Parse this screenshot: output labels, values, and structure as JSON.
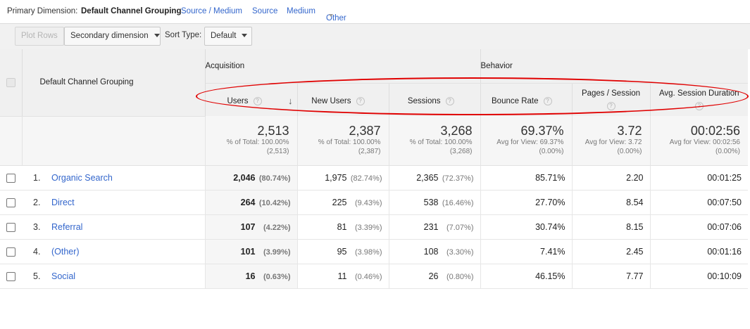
{
  "dimension_bar": {
    "label": "Primary Dimension:",
    "active": "Default Channel Grouping",
    "links": [
      "Source / Medium",
      "Source",
      "Medium",
      "Other"
    ]
  },
  "toolbar": {
    "plot_rows": "Plot Rows",
    "secondary_dimension": "Secondary dimension",
    "sort_type_label": "Sort Type:",
    "sort_type_value": "Default"
  },
  "table": {
    "dimension_header": "Default Channel Grouping",
    "groups": {
      "acquisition": "Acquisition",
      "behavior": "Behavior"
    },
    "metrics": {
      "users": "Users",
      "new_users": "New Users",
      "sessions": "Sessions",
      "bounce_rate": "Bounce Rate",
      "pages_session": "Pages / Session",
      "avg_session_duration": "Avg. Session Duration"
    },
    "help_glyph": "?",
    "sort_glyph": "↓",
    "totals": {
      "users": {
        "value": "2,513",
        "line1": "% of Total: 100.00%",
        "line2": "(2,513)"
      },
      "new_users": {
        "value": "2,387",
        "line1": "% of Total: 100.00%",
        "line2": "(2,387)"
      },
      "sessions": {
        "value": "3,268",
        "line1": "% of Total: 100.00%",
        "line2": "(3,268)"
      },
      "bounce_rate": {
        "value": "69.37%",
        "line1": "Avg for View: 69.37%",
        "line2": "(0.00%)"
      },
      "pages_session": {
        "value": "3.72",
        "line1": "Avg for View: 3.72",
        "line2": "(0.00%)"
      },
      "avg_session_duration": {
        "value": "00:02:56",
        "line1": "Avg for View: 00:02:56",
        "line2": "(0.00%)"
      }
    },
    "rows": [
      {
        "index": "1.",
        "channel": "Organic Search",
        "users": "2,046",
        "users_pct": "(80.74%)",
        "new_users": "1,975",
        "new_users_pct": "(82.74%)",
        "sessions": "2,365",
        "sessions_pct": "(72.37%)",
        "bounce_rate": "85.71%",
        "pages_session": "2.20",
        "avg_session_duration": "00:01:25"
      },
      {
        "index": "2.",
        "channel": "Direct",
        "users": "264",
        "users_pct": "(10.42%)",
        "new_users": "225",
        "new_users_pct": "(9.43%)",
        "sessions": "538",
        "sessions_pct": "(16.46%)",
        "bounce_rate": "27.70%",
        "pages_session": "8.54",
        "avg_session_duration": "00:07:50"
      },
      {
        "index": "3.",
        "channel": "Referral",
        "users": "107",
        "users_pct": "(4.22%)",
        "new_users": "81",
        "new_users_pct": "(3.39%)",
        "sessions": "231",
        "sessions_pct": "(7.07%)",
        "bounce_rate": "30.74%",
        "pages_session": "8.15",
        "avg_session_duration": "00:07:06"
      },
      {
        "index": "4.",
        "channel": "(Other)",
        "users": "101",
        "users_pct": "(3.99%)",
        "new_users": "95",
        "new_users_pct": "(3.98%)",
        "sessions": "108",
        "sessions_pct": "(3.30%)",
        "bounce_rate": "7.41%",
        "pages_session": "2.45",
        "avg_session_duration": "00:01:16"
      },
      {
        "index": "5.",
        "channel": "Social",
        "users": "16",
        "users_pct": "(0.63%)",
        "new_users": "11",
        "new_users_pct": "(0.46%)",
        "sessions": "26",
        "sessions_pct": "(0.80%)",
        "bounce_rate": "46.15%",
        "pages_session": "7.77",
        "avg_session_duration": "00:10:09"
      }
    ]
  }
}
